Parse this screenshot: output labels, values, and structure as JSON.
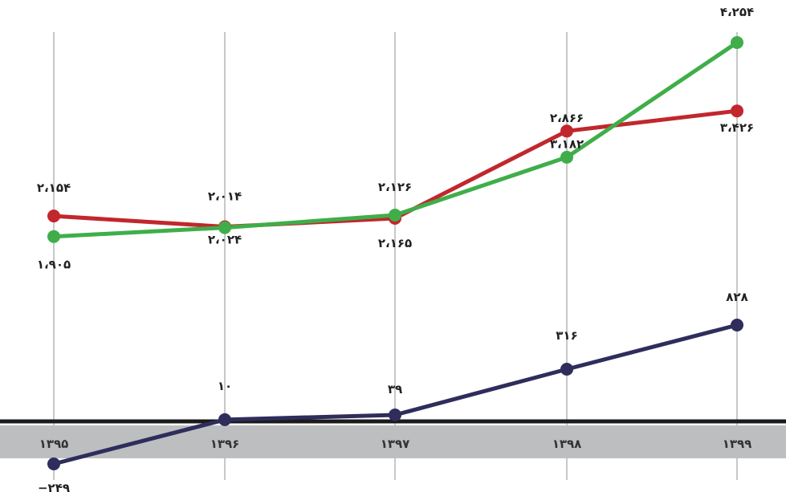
{
  "chart_data": {
    "type": "line",
    "categories": [
      "۱۳۹۵",
      "۱۳۹۶",
      "۱۳۹۷",
      "۱۳۹۸",
      "۱۳۹۹"
    ],
    "series": [
      {
        "color": "#c1272d",
        "values": [
          2154,
          2024,
          2126,
          3182,
          3426
        ],
        "labels": [
          "۲،۱۵۴",
          "۲،۰۲۴",
          "۲،۱۲۶",
          "۳،۱۸۲",
          "۳،۴۲۶"
        ]
      },
      {
        "color": "#3fae49",
        "values": [
          1905,
          2014,
          2165,
          2866,
          4254
        ],
        "labels": [
          "۱،۹۰۵",
          "۲،۰۱۴",
          "۲،۱۶۵",
          "۲،۸۶۶",
          "۴،۲۵۴"
        ]
      },
      {
        "color": "#2e2d5c",
        "values": [
          -249,
          10,
          39,
          316,
          828
        ],
        "labels": [
          "−۲۴۹",
          "۱۰",
          "۳۹",
          "۳۱۶",
          "۸۲۸"
        ]
      }
    ],
    "grid": "vertical lines at each category",
    "axis_band_color": "#bcbec0",
    "baseline_color": "#1a1a1a"
  }
}
